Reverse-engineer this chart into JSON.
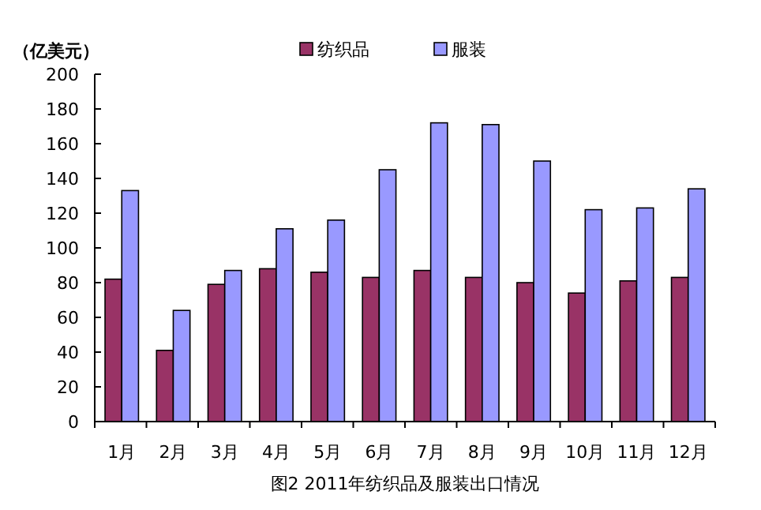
{
  "chart_data": {
    "type": "bar",
    "ylabel": "（亿美元）",
    "annotations": [
      "图2  2011年纺织品及服装出口情况"
    ],
    "categories": [
      "1月",
      "2月",
      "3月",
      "4月",
      "5月",
      "6月",
      "7月",
      "8月",
      "9月",
      "10月",
      "11月",
      "12月"
    ],
    "series": [
      {
        "name": "纺织品",
        "color": "#993366",
        "values": [
          82,
          41,
          79,
          88,
          86,
          83,
          87,
          83,
          80,
          74,
          81,
          83
        ]
      },
      {
        "name": "服装",
        "color": "#9999ff",
        "values": [
          133,
          64,
          87,
          111,
          116,
          145,
          172,
          171,
          150,
          122,
          123,
          134
        ]
      }
    ],
    "ylim": [
      0,
      200
    ],
    "yticks": [
      0,
      20,
      40,
      60,
      80,
      100,
      120,
      140,
      160,
      180,
      200
    ],
    "grid": false,
    "legend": "top"
  }
}
